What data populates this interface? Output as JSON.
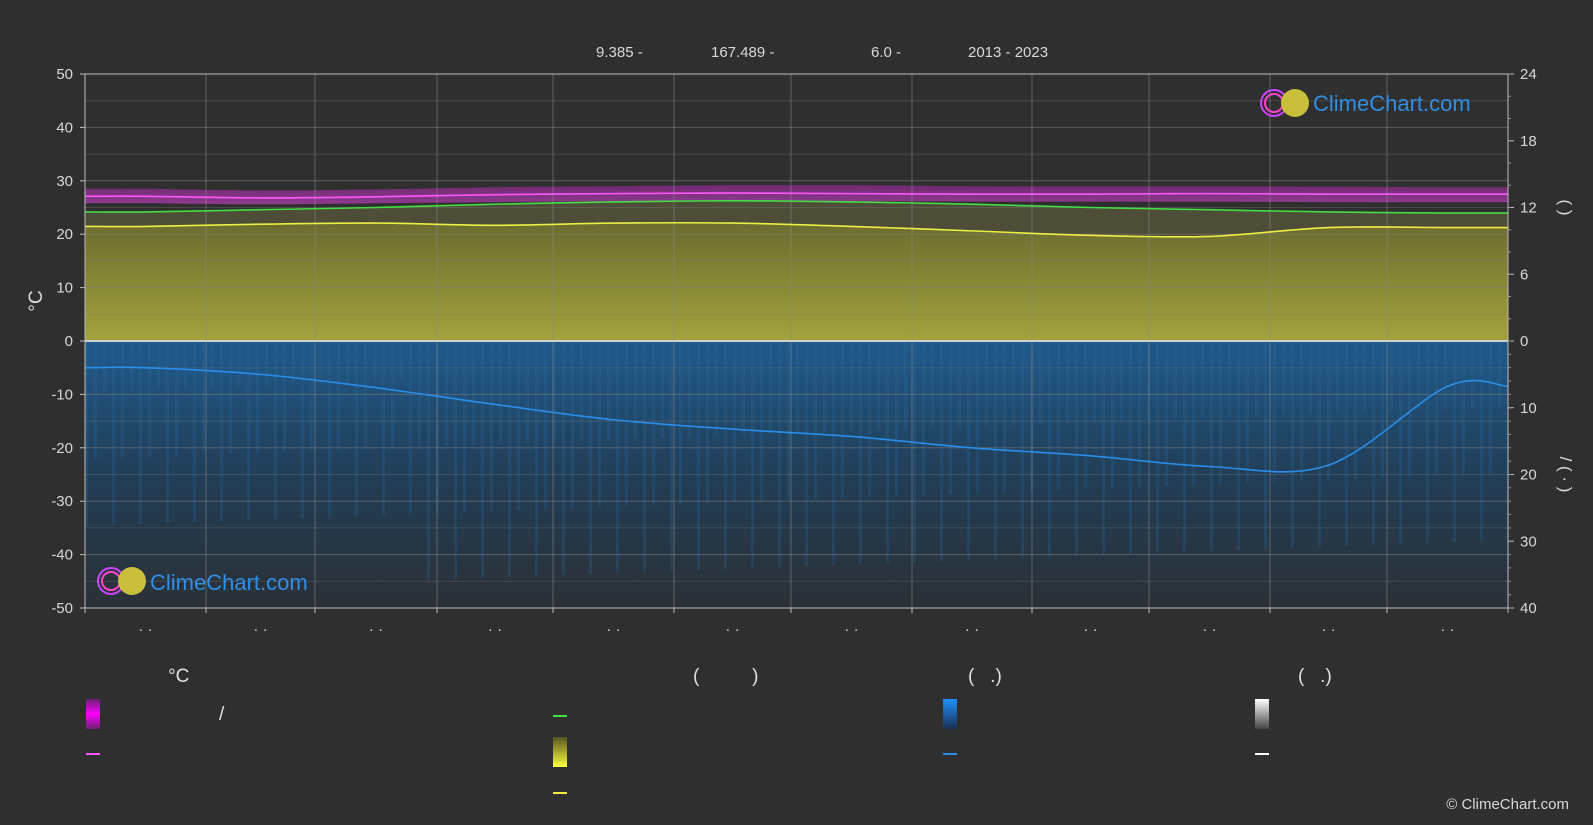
{
  "header": {
    "lat": "9.385 -",
    "lon": "167.489 -",
    "elev": "6.0 -",
    "years": "2013 - 2023"
  },
  "logo_text": "ClimeChart.com",
  "copyright": "© ClimeChart.com",
  "colors": {
    "background": "#2f2f2f",
    "temp_band": "#c020c0",
    "temp_mean": "#ff55ff",
    "daylight": "#44dd44",
    "sunshine_fill": "#9b9b3a",
    "sunshine_line": "#eeee44",
    "rain_fill": "#1f5a8c",
    "rain_line": "#2a8ee8",
    "snow_line": "#ffffff",
    "logo": "#2f8ee6"
  },
  "legend": {
    "col1_title": "°C",
    "col1_row1_text": "/",
    "col2_title": "(          )",
    "col3_title": "(   .)",
    "col4_title": "(   .)"
  },
  "chart_data": {
    "type": "area",
    "left_axis": {
      "label": "°C",
      "ylim": [
        -50,
        50
      ],
      "ticks": [
        50,
        40,
        30,
        20,
        10,
        0,
        -10,
        -20,
        -30,
        -40,
        -50
      ]
    },
    "right_axis_top": {
      "ticks": [
        24,
        18,
        12,
        6,
        0
      ],
      "label": "(       )"
    },
    "right_axis_bottom": {
      "ticks": [
        0,
        10,
        20,
        30,
        40
      ],
      "label": "/    (  ·  )"
    },
    "months": [
      "· ·",
      "· ·",
      "· ·",
      "· ·",
      "· ·",
      "· ·",
      "· ·",
      "· ·",
      "· ·",
      "· ·",
      "· ·",
      "· ·"
    ],
    "grid": true,
    "series": [
      {
        "key": "temp_mean",
        "values": [
          27.1,
          26.8,
          27.0,
          27.4,
          27.6,
          27.7,
          27.6,
          27.5,
          27.5,
          27.6,
          27.5,
          27.5
        ]
      },
      {
        "key": "temp_band_max",
        "values": [
          28.5,
          28.2,
          28.4,
          28.8,
          29.0,
          29.2,
          29.2,
          29.0,
          29.0,
          29.0,
          28.9,
          28.8
        ]
      },
      {
        "key": "temp_band_min",
        "values": [
          25.8,
          25.6,
          25.8,
          26.0,
          26.2,
          26.3,
          26.2,
          26.1,
          26.1,
          26.1,
          26.0,
          26.0
        ]
      },
      {
        "key": "daylight_hours",
        "values": [
          11.6,
          11.8,
          12.0,
          12.3,
          12.5,
          12.6,
          12.5,
          12.3,
          12.0,
          11.8,
          11.6,
          11.5
        ]
      },
      {
        "key": "sunshine_hours",
        "values": [
          10.3,
          10.5,
          10.6,
          10.4,
          10.6,
          10.6,
          10.3,
          9.9,
          9.5,
          9.4,
          10.2,
          10.2
        ]
      },
      {
        "key": "precip_mm_day",
        "values": [
          4.0,
          5.0,
          7.0,
          9.5,
          11.8,
          13.2,
          14.3,
          16.0,
          17.2,
          18.8,
          18.6,
          6.8
        ]
      }
    ]
  }
}
